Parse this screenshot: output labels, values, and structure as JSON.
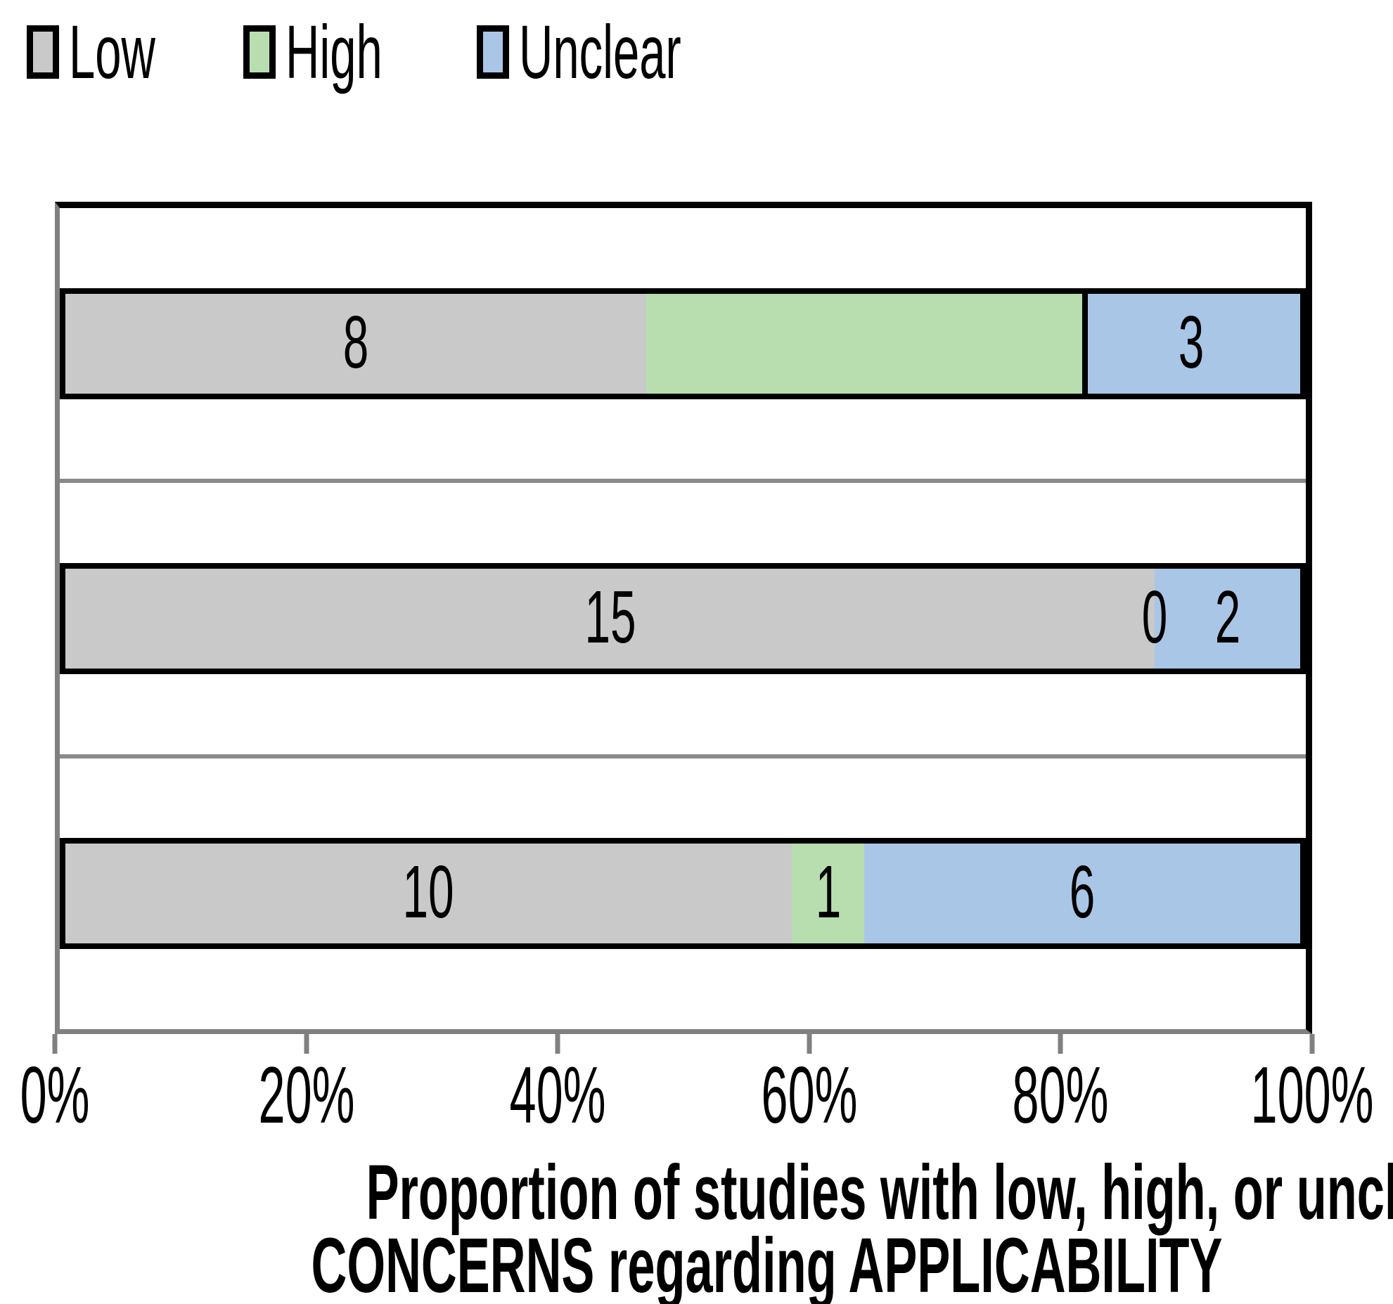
{
  "legend": {
    "items": [
      {
        "label": "Low",
        "color": "#C9C9C9"
      },
      {
        "label": "High",
        "color": "#B8DEB0"
      },
      {
        "label": "Unclear",
        "color": "#A9C6E7"
      }
    ]
  },
  "chart_data": {
    "type": "bar",
    "orientation": "horizontal",
    "stacked": true,
    "categories": [
      "row-1",
      "row-2",
      "row-3"
    ],
    "category_axis_labels_visible": false,
    "series": [
      {
        "name": "Low",
        "color": "#C9C9C9",
        "values": [
          8,
          15,
          10
        ]
      },
      {
        "name": "High",
        "color": "#B8DEB0",
        "values": [
          6,
          0,
          1
        ]
      },
      {
        "name": "Unclear",
        "color": "#A9C6E7",
        "values": [
          3,
          2,
          6
        ]
      }
    ],
    "bar_labels": [
      [
        "8",
        "",
        "3"
      ],
      [
        "15",
        "0",
        "2"
      ],
      [
        "10",
        "1",
        "6"
      ]
    ],
    "x_axis": {
      "min": 0,
      "max": 1,
      "format": "percent",
      "ticks": [
        "0%",
        "20%",
        "40%",
        "60%",
        "80%",
        "100%"
      ]
    },
    "title": "Proportion of studies with low, high, or unclear CONCERNS regarding APPLICABILITY",
    "title_lines": [
      "Proportion of studies with low, high, or unclear",
      "CONCERNS regarding APPLICABILITY"
    ],
    "legend_position": "top-left",
    "grid": "category-separator-lines",
    "colors": {
      "bar_border": "#000000",
      "axis_line": "#808080",
      "separator_line": "#8A8A8A",
      "label_text": "#000000",
      "background": "#FFFFFF"
    }
  }
}
